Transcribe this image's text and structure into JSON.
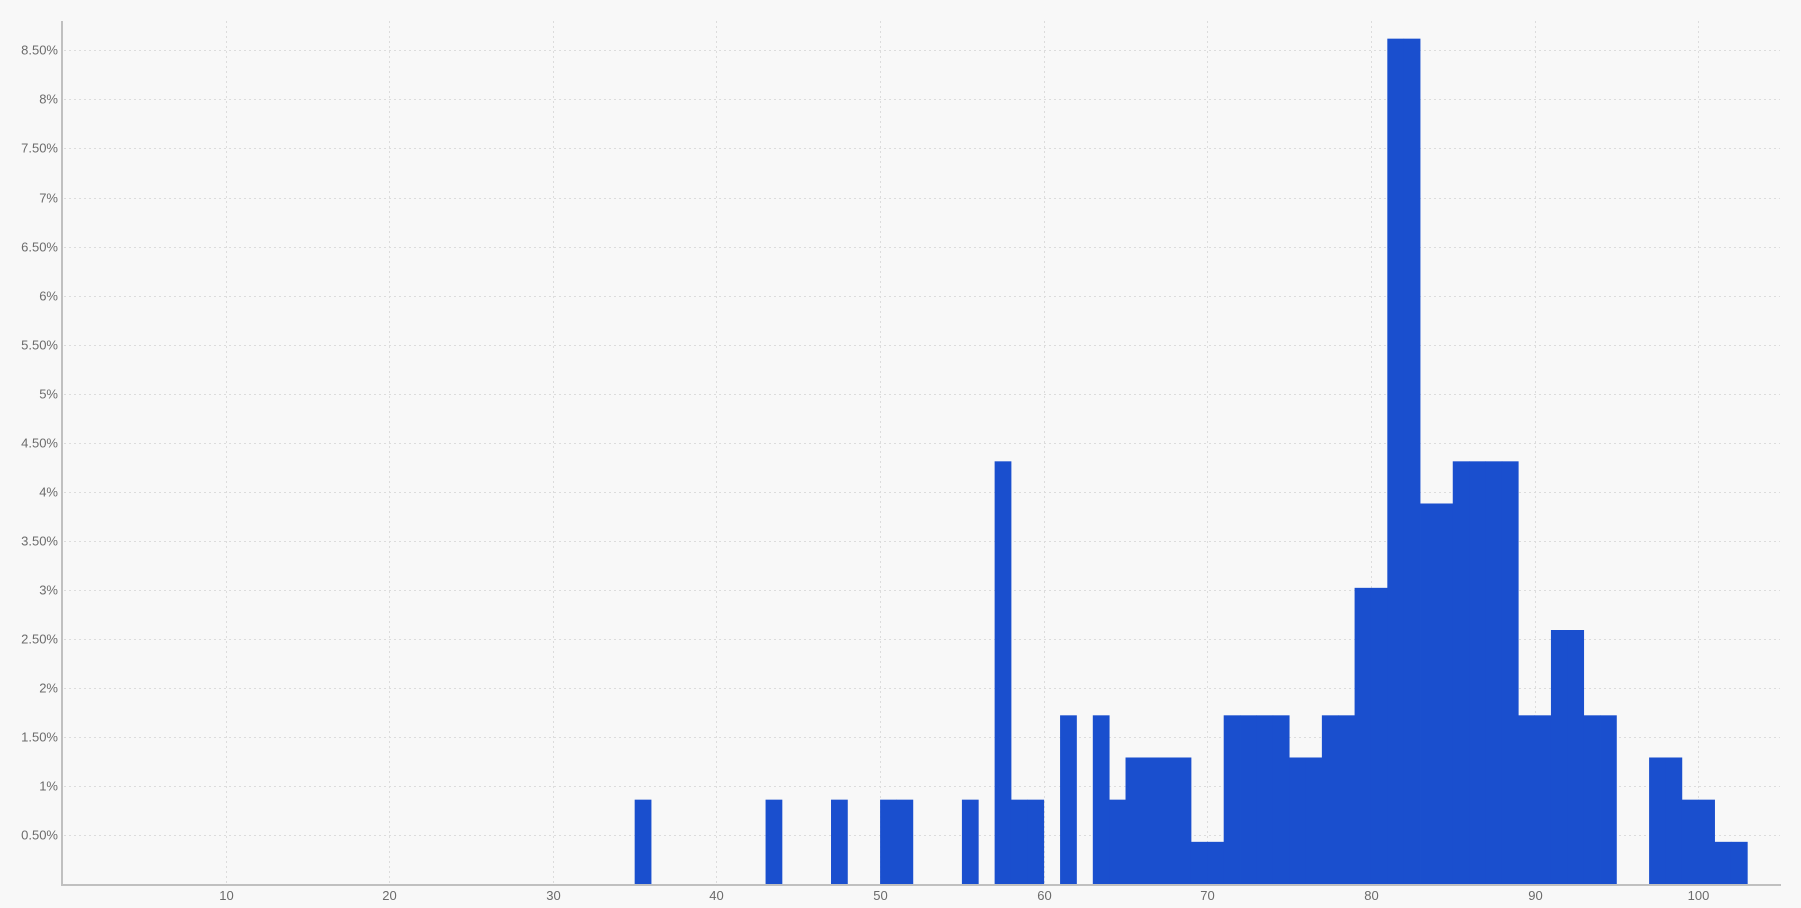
{
  "chart_data": {
    "type": "bar",
    "title": "",
    "xlabel": "",
    "ylabel": "",
    "bar_color": "#1a4fce",
    "background": "#f8f8f8",
    "grid": true,
    "bin_width": 1,
    "xlim": [
      0,
      105
    ],
    "ylim": [
      0,
      8.8
    ],
    "x_ticks": [
      10,
      20,
      30,
      40,
      50,
      60,
      70,
      80,
      90,
      100
    ],
    "x_tick_labels": [
      "10",
      "20",
      "30",
      "40",
      "50",
      "60",
      "70",
      "80",
      "90",
      "100"
    ],
    "y_ticks": [
      0.5,
      1,
      1.5,
      2,
      2.5,
      3,
      3.5,
      4,
      4.5,
      5,
      5.5,
      6,
      6.5,
      7,
      7.5,
      8,
      8.5
    ],
    "y_tick_labels": [
      "0.50%",
      "1%",
      "1.50%",
      "2%",
      "2.50%",
      "3%",
      "3.50%",
      "4%",
      "4.50%",
      "5%",
      "5.50%",
      "6%",
      "6.50%",
      "7%",
      "7.50%",
      "8%",
      "8.50%"
    ],
    "bins": [
      35,
      43,
      47,
      50,
      51,
      55,
      57,
      58,
      59,
      61,
      63,
      64,
      65,
      66,
      67,
      68,
      69,
      70,
      71,
      72,
      73,
      74,
      75,
      76,
      77,
      78,
      79,
      80,
      81,
      82,
      83,
      84,
      85,
      86,
      87,
      88,
      89,
      90,
      91,
      92,
      93,
      94,
      97,
      98,
      99,
      100,
      101,
      102
    ],
    "values": [
      0.86,
      0.86,
      0.86,
      0.86,
      0.86,
      0.86,
      4.31,
      0.86,
      0.86,
      1.72,
      1.72,
      0.86,
      1.29,
      1.29,
      1.29,
      1.29,
      0.43,
      0.43,
      1.72,
      1.72,
      1.72,
      1.72,
      1.29,
      1.29,
      1.72,
      1.72,
      3.02,
      3.02,
      8.62,
      8.62,
      3.88,
      3.88,
      4.31,
      4.31,
      4.31,
      4.31,
      1.72,
      1.72,
      2.59,
      2.59,
      1.72,
      1.72,
      1.29,
      1.29,
      0.86,
      0.86,
      0.43,
      0.43
    ]
  }
}
